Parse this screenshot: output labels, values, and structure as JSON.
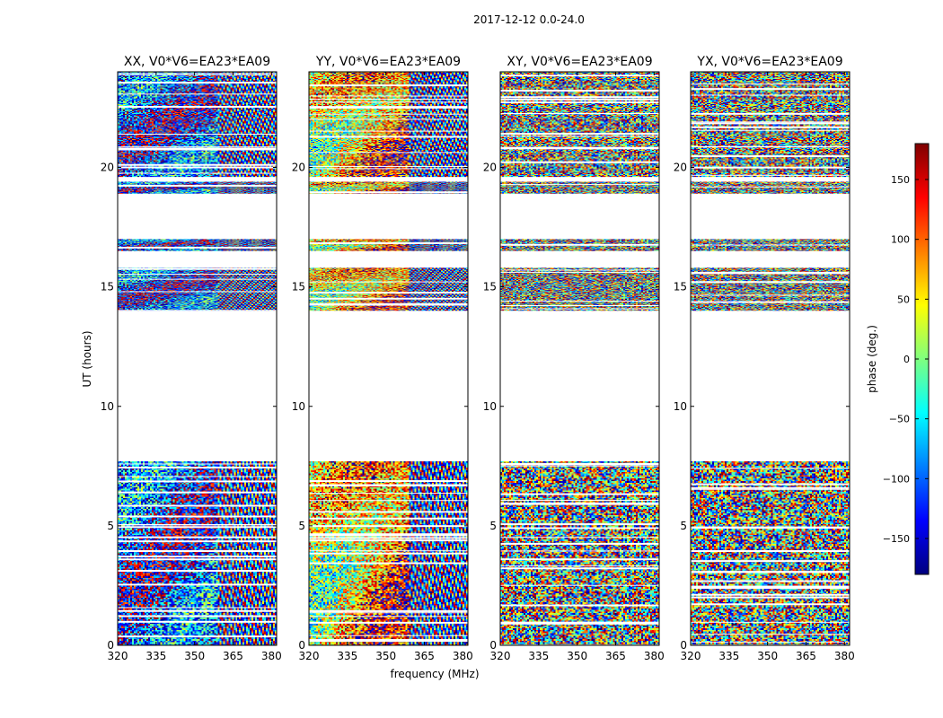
{
  "figure": {
    "suptitle": "2017-12-12 0.0-24.0"
  },
  "chart_data": {
    "type": "heatmap",
    "title": "2017-12-12 0.0-24.0",
    "xlabel": "frequency (MHz)",
    "ylabel": "UT (hours)",
    "xlim": [
      320,
      382
    ],
    "ylim": [
      0,
      24
    ],
    "x_ticks": [
      320,
      335,
      350,
      365,
      380
    ],
    "y_ticks": [
      0,
      5,
      10,
      15,
      20
    ],
    "panels": [
      {
        "title": "XX, V0*V6=EA23*EA09",
        "pol": "XX"
      },
      {
        "title": "YY, V0*V6=EA23*EA09",
        "pol": "YY"
      },
      {
        "title": "XY, V0*V6=EA23*EA09",
        "pol": "XY"
      },
      {
        "title": "YX, V0*V6=EA23*EA09",
        "pol": "YX"
      }
    ],
    "data_blocks_hours": [
      [
        0,
        7.7
      ],
      [
        14.0,
        15.8
      ],
      [
        16.5,
        17.0
      ],
      [
        18.9,
        19.4
      ],
      [
        19.6,
        24.0
      ]
    ],
    "colorbar": {
      "label": "phase (deg.)",
      "range": [
        -180,
        180
      ],
      "ticks": [
        -150,
        -100,
        -50,
        0,
        50,
        100,
        150
      ],
      "tick_labels": [
        "−150",
        "−100",
        "−50",
        "0",
        "50",
        "100",
        "150"
      ],
      "colormap": [
        "#00007f",
        "#0000ff",
        "#007fff",
        "#00ffff",
        "#7fff7f",
        "#ffff00",
        "#ff7f00",
        "#ff0000",
        "#7f0000"
      ]
    }
  }
}
